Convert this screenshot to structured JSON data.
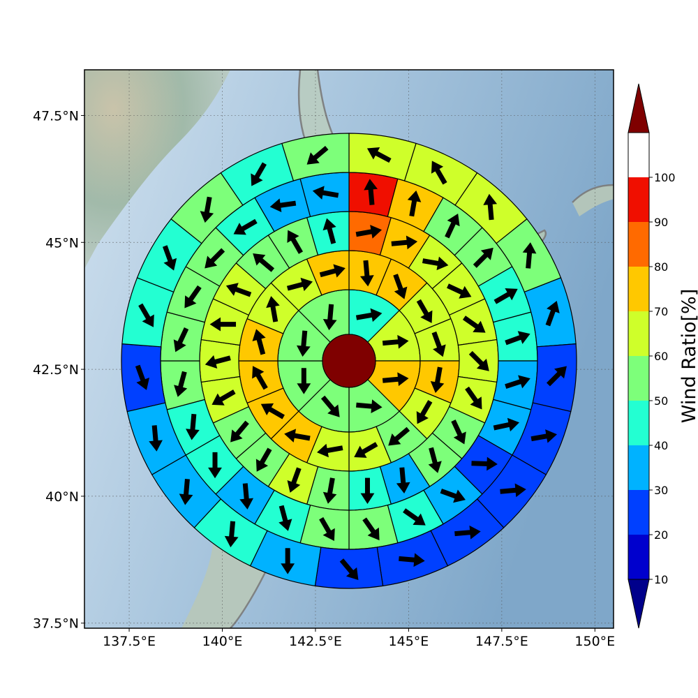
{
  "chart_data": {
    "type": "polar-sector-heatmap-map",
    "colorbar": {
      "label": "Wind Ratio[%]",
      "ticks": [
        "10",
        "20",
        "30",
        "40",
        "50",
        "60",
        "70",
        "80",
        "90",
        "100"
      ],
      "levels": [
        0,
        10,
        20,
        30,
        40,
        50,
        60,
        70,
        80,
        90,
        100
      ],
      "colors": [
        "#00008b",
        "#0000cd",
        "#0040ff",
        "#00b2ff",
        "#23ffd2",
        "#7dff7a",
        "#cfff2a",
        "#ffc800",
        "#ff6a00",
        "#f00f00",
        "#7f0000"
      ],
      "extend": "both"
    },
    "axes": {
      "xticks": [
        "137.5°E",
        "140°E",
        "142.5°E",
        "145°E",
        "147.5°E",
        "150°E"
      ],
      "yticks": [
        "47.5°N",
        "45°N",
        "42.5°N",
        "40°N",
        "37.5°N"
      ],
      "xlim": [
        136.3,
        150.5
      ],
      "ylim": [
        37.4,
        48.4
      ],
      "grid": true
    },
    "center": {
      "lon": 143.3,
      "lat": 43.0,
      "value": 100
    },
    "rings": [
      {
        "values": [
          45,
          60,
          70,
          55,
          55,
          50,
          55,
          50
        ]
      },
      {
        "values": [
          70,
          70,
          60,
          60,
          70,
          60,
          55,
          60,
          60,
          70,
          70,
          70,
          70,
          60,
          60,
          70
        ]
      },
      {
        "values": [
          80,
          70,
          60,
          60,
          60,
          60,
          60,
          50,
          50,
          30,
          40,
          50,
          60,
          50,
          50,
          60,
          60,
          60,
          60,
          50,
          50,
          40
        ]
      },
      {
        "values": [
          90,
          70,
          50,
          50,
          40,
          40,
          30,
          30,
          20,
          30,
          40,
          50,
          50,
          40,
          30,
          40,
          40,
          50,
          50,
          50,
          50,
          40,
          30,
          30
        ]
      },
      {
        "values": [
          60,
          60,
          60,
          50,
          30,
          20,
          20,
          20,
          20,
          20,
          20,
          30,
          40,
          30,
          30,
          20,
          40,
          40,
          50,
          40,
          50
        ]
      }
    ],
    "wind_arrows": {
      "directions_deg_from_north": [
        80,
        85,
        85,
        95,
        140,
        180,
        185,
        185,
        175,
        160,
        150,
        160,
        190,
        210,
        230,
        240,
        260,
        280,
        300,
        330,
        345,
        350,
        75,
        75,
        80,
        85,
        100,
        115,
        125,
        135,
        145,
        155,
        165,
        175,
        180,
        190,
        200,
        210,
        220,
        240,
        255,
        270,
        290,
        310,
        330,
        345,
        355,
        10,
        25,
        45,
        60,
        70,
        72,
        78,
        92,
        110,
        125,
        145,
        150,
        165,
        175,
        180,
        185,
        195,
        205,
        215,
        225,
        240,
        262,
        280,
        298,
        330,
        355,
        5,
        20,
        45
      ]
    }
  }
}
